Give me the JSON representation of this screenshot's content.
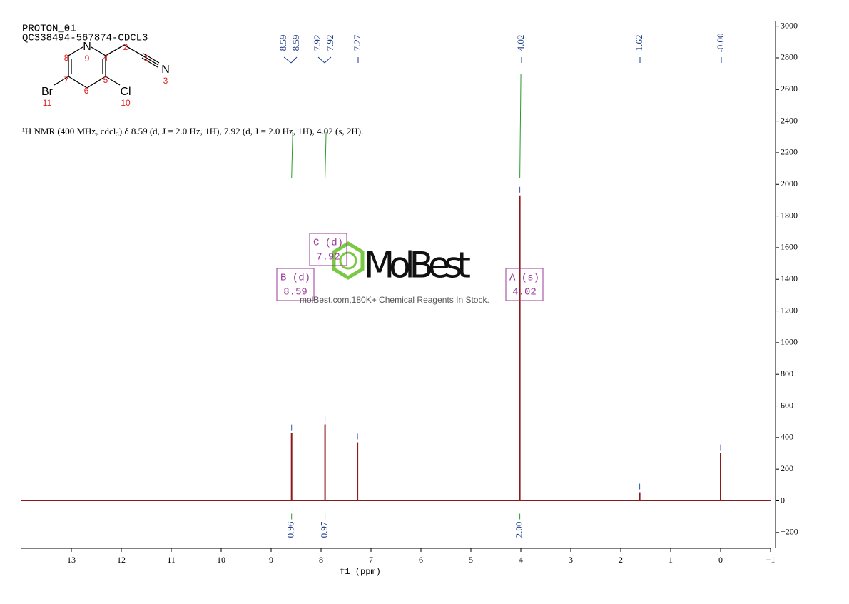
{
  "chart_data": {
    "type": "nmr",
    "title": "PROTON_01",
    "subtitle": "QC338494-567874-CDCL3",
    "description": "¹H NMR (400 MHz, cdcl₃) δ 8.59 (d, J = 2.0 Hz, 1H), 7.92 (d, J = 2.0 Hz, 1H), 4.02 (s, 2H).",
    "x_label": "f1 (ppm)",
    "xlim": [
      14,
      -1
    ],
    "xticks": [
      13,
      12,
      11,
      10,
      9,
      8,
      7,
      6,
      5,
      4,
      3,
      2,
      1,
      0,
      {
        "value": -1,
        "label": "−1"
      }
    ],
    "ylim": [
      -300,
      3030
    ],
    "yticks": [
      {
        "value": -200,
        "label": "−200"
      },
      0,
      200,
      400,
      600,
      800,
      1000,
      1200,
      1400,
      1600,
      1800,
      2000,
      2200,
      2400,
      2600,
      2800,
      3000
    ],
    "color": "#8b1a1a",
    "peaks": {
      "ppm": [
        8.59,
        7.92,
        7.27,
        4.02,
        1.62,
        0.0
      ],
      "heights": [
        428,
        483,
        370,
        1930,
        54,
        302
      ]
    },
    "peak_labels": [
      "8.59",
      "8.59",
      "7.92",
      "7.92",
      "7.27",
      "4.02",
      "1.62",
      "-0.00"
    ],
    "integrals": {
      "ppm": [
        8.59,
        7.92,
        4.02
      ],
      "values": [
        0.96,
        0.97,
        2.0
      ],
      "labels": [
        "0.96",
        "0.97",
        "2.00"
      ]
    },
    "multiplets": [
      {
        "label": "B (d)",
        "shift": "8.59"
      },
      {
        "label": "C (d)",
        "shift": "7.92"
      },
      {
        "label": "A (s)",
        "shift": "4.02"
      }
    ],
    "watermark": {
      "brand": "MolBest",
      "tagline": "molBest.com,180K+ Chemical Reagents In Stock."
    }
  },
  "structure": {
    "atoms": [
      "N",
      "9",
      "8",
      "4",
      "2",
      "1",
      "N",
      "3",
      "7",
      "5",
      "Br",
      "11",
      "6",
      "Cl",
      "10"
    ]
  }
}
